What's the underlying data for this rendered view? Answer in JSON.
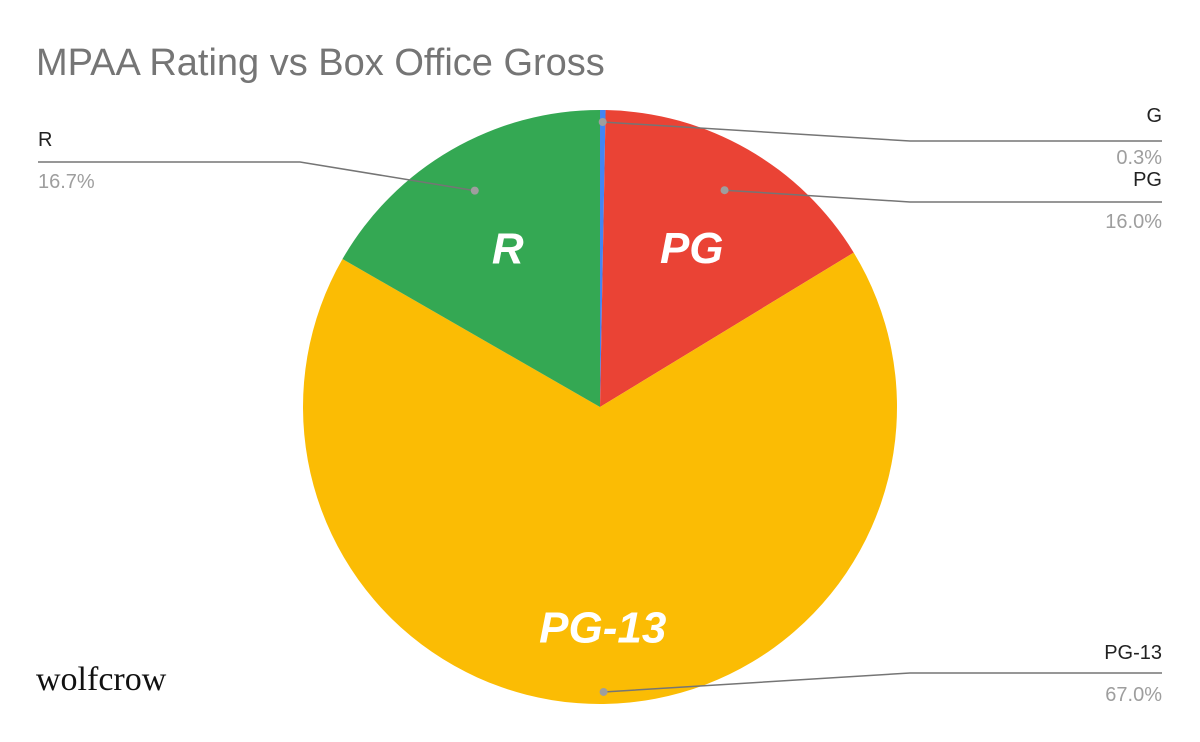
{
  "chart_data": {
    "type": "pie",
    "title": "MPAA Rating vs Box Office Gross",
    "slices": [
      {
        "label": "G",
        "value": 0.3,
        "percent_label": "0.3%",
        "color": "#4285f4",
        "inner_label": ""
      },
      {
        "label": "PG",
        "value": 16.0,
        "percent_label": "16.0%",
        "color": "#ea4335",
        "inner_label": "PG"
      },
      {
        "label": "PG-13",
        "value": 67.0,
        "percent_label": "67.0%",
        "color": "#fbbc04",
        "inner_label": "PG-13"
      },
      {
        "label": "R",
        "value": 16.7,
        "percent_label": "16.7%",
        "color": "#34a853",
        "inner_label": "R"
      }
    ],
    "legend": "none",
    "start_angle": "top",
    "direction": "clockwise"
  },
  "watermark": "wolfcrow"
}
